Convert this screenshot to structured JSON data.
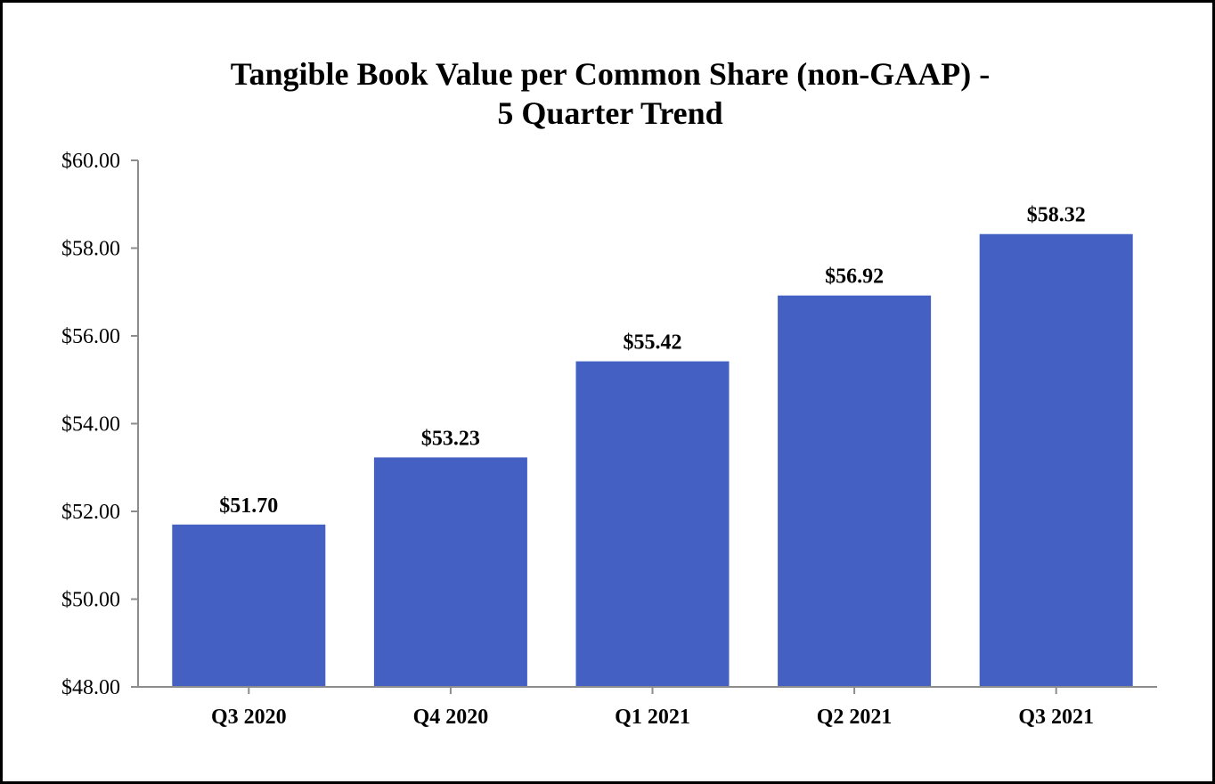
{
  "chart_data": {
    "type": "bar",
    "title_lines": [
      "Tangible Book Value per Common Share (non-GAAP) -",
      "5 Quarter Trend"
    ],
    "categories": [
      "Q3 2020",
      "Q4 2020",
      "Q1 2021",
      "Q2 2021",
      "Q3 2021"
    ],
    "values": [
      51.7,
      53.23,
      55.42,
      56.92,
      58.32
    ],
    "data_labels": [
      "$51.70",
      "$53.23",
      "$55.42",
      "$56.92",
      "$58.32"
    ],
    "ylim": [
      48,
      60
    ],
    "y_ticks": [
      48,
      50,
      52,
      54,
      56,
      58,
      60
    ],
    "y_tick_labels": [
      "$48.00",
      "$50.00",
      "$52.00",
      "$54.00",
      "$56.00",
      "$58.00",
      "$60.00"
    ],
    "xlabel": "",
    "ylabel": "",
    "grid": false,
    "legend": "none",
    "colors": {
      "bar": "#4360C2",
      "axis": "#8c8c8c",
      "text": "#000000",
      "frame": "#000000"
    }
  }
}
